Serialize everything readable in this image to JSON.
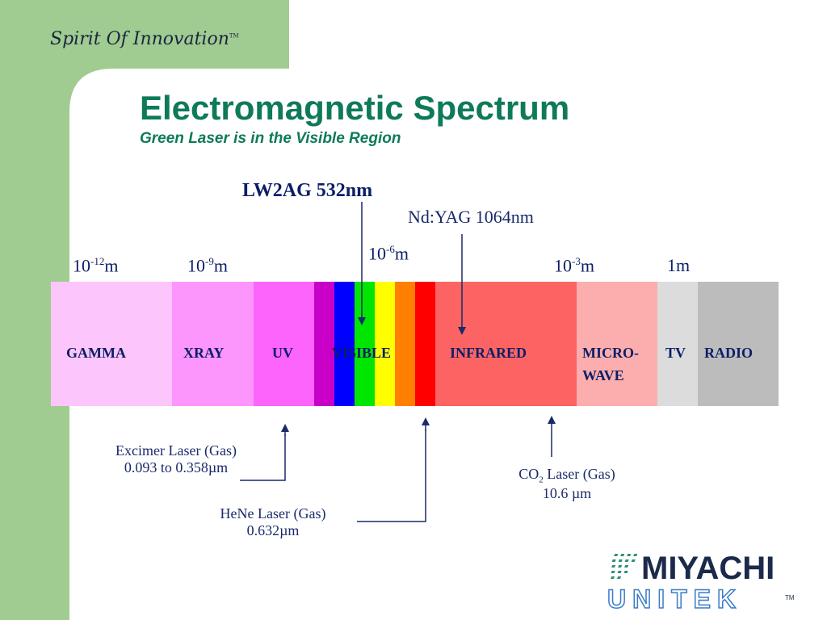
{
  "slide": {
    "tagline": "Spirit Of Innovation",
    "tagline_tm": "TM",
    "title": "Electromagnetic Spectrum",
    "subtitle": "Green  Laser is in the Visible Region"
  },
  "colors": {
    "sidebar_green": "#a0cc92",
    "title_green": "#0e7a5a",
    "label_navy": "#0c1e66"
  },
  "top_labels": {
    "lw2ag": "LW2AG 532nm",
    "ndyag": "Nd:YAG 1064nm"
  },
  "scale": [
    {
      "base": "10",
      "exp": "-12",
      "unit": "m"
    },
    {
      "base": "10",
      "exp": "-9",
      "unit": "m"
    },
    {
      "base": "10",
      "exp": "-6",
      "unit": "m"
    },
    {
      "base": "10",
      "exp": "-3",
      "unit": "m"
    },
    {
      "base": "",
      "exp": "",
      "unit": "1m"
    }
  ],
  "bands": {
    "gamma": {
      "label": "GAMMA",
      "color": "#fcc6fc"
    },
    "xray": {
      "label": "XRAY",
      "color": "#fc96fc"
    },
    "uv": {
      "label": "UV",
      "color": "#fc64fc"
    },
    "visible": {
      "label": "VISIBLE"
    },
    "infrared": {
      "label": "INFRARED",
      "color": "#fc6464"
    },
    "microwave": {
      "label_line1": "MICRO-",
      "label_line2": "WAVE",
      "color": "#fcaeae"
    },
    "tv": {
      "label": "TV",
      "color": "#dcdcdc"
    },
    "radio": {
      "label": "RADIO",
      "color": "#bcbcbc"
    }
  },
  "visible_stripes": [
    "#c800c8",
    "#0000ff",
    "#00e600",
    "#ffff00",
    "#ff8000",
    "#ff0000"
  ],
  "lasers": {
    "excimer": {
      "line1": "Excimer Laser (Gas)",
      "line2": "0.093 to 0.358µm"
    },
    "hene": {
      "line1": "HeNe Laser (Gas)",
      "line2": "0.632µm"
    },
    "co2": {
      "pre": "CO",
      "sub": "2",
      "post": " Laser (Gas)",
      "line2": "10.6 µm"
    }
  },
  "logo": {
    "line1": "MIYACHI",
    "line2": "UNITEK",
    "tm": "TM"
  }
}
